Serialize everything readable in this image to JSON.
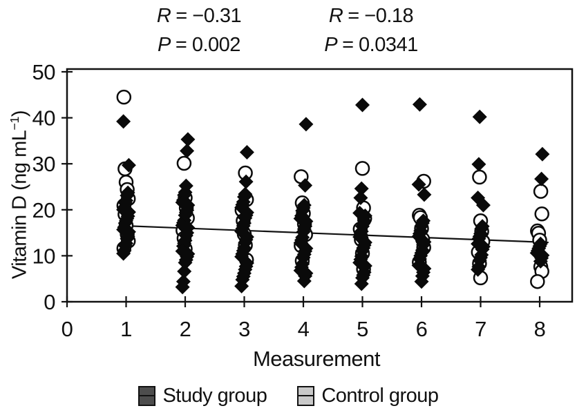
{
  "figure": {
    "stats": [
      {
        "r_symbol": "R",
        "r_value": "= −0.31",
        "p_symbol": "P",
        "p_value": "= 0.002"
      },
      {
        "r_symbol": "R",
        "r_value": "= −0.18",
        "p_symbol": "P",
        "p_value": "= 0.0341"
      }
    ],
    "y_axis": {
      "label_main": "Vitamin D (ng mL",
      "label_sup": "−1",
      "label_close": ")"
    },
    "x_axis": {
      "label": "Measurement"
    },
    "legend": [
      {
        "label": "Study group",
        "swatch_color": "#4d4d4d",
        "marker": "diamond"
      },
      {
        "label": "Control group",
        "swatch_color": "#c9c9c9",
        "marker": "circle"
      }
    ],
    "colors": {
      "ink": "#111111",
      "study_fill": "#0a0a0a",
      "control_fill": "#ffffff"
    }
  },
  "chart_data": {
    "type": "scatter",
    "title": "",
    "xlabel": "Measurement",
    "ylabel": "Vitamin D (ng mL⁻¹)",
    "xlim": [
      0,
      8.55
    ],
    "ylim": [
      0,
      50.5
    ],
    "x_ticks": [
      0,
      1,
      2,
      3,
      4,
      5,
      6,
      7,
      8
    ],
    "y_ticks": [
      0,
      10,
      20,
      30,
      40,
      50
    ],
    "grid": false,
    "legend_position": "bottom",
    "annotations": [
      {
        "line1": "R = −0.31",
        "line2": "P = 0.002"
      },
      {
        "line1": "R = −0.18",
        "line2": "P = 0.0341"
      }
    ],
    "trend_line": {
      "x": [
        1,
        8.15
      ],
      "y": [
        16.5,
        12.9
      ]
    },
    "series": [
      {
        "name": "Control group",
        "marker": "circle",
        "fill": "#ffffff",
        "stroke": "#0a0a0a",
        "points": [
          [
            1,
            44.5
          ],
          [
            1,
            28.9
          ],
          [
            1,
            26.0
          ],
          [
            1,
            24.4
          ],
          [
            1,
            22.4
          ],
          [
            1,
            20.9
          ],
          [
            1,
            19.0
          ],
          [
            1,
            16.6
          ],
          [
            1,
            14.7
          ],
          [
            1,
            13.2
          ],
          [
            1,
            11.6
          ],
          [
            2,
            30.1
          ],
          [
            2,
            22.6
          ],
          [
            2,
            20.4
          ],
          [
            2,
            18.2
          ],
          [
            2,
            15.5
          ],
          [
            2,
            13.8
          ],
          [
            2,
            11.5
          ],
          [
            3,
            28.0
          ],
          [
            3,
            22.2
          ],
          [
            3,
            19.9
          ],
          [
            3,
            17.6
          ],
          [
            3,
            14.7
          ],
          [
            3,
            12.3
          ],
          [
            3,
            9.1
          ],
          [
            4,
            27.2
          ],
          [
            4,
            21.5
          ],
          [
            4,
            19.2
          ],
          [
            4,
            16.9
          ],
          [
            4,
            14.6
          ],
          [
            4,
            12.2
          ],
          [
            4,
            8.9
          ],
          [
            5,
            29.0
          ],
          [
            5,
            20.4
          ],
          [
            5,
            18.1
          ],
          [
            5,
            15.8
          ],
          [
            5,
            13.5
          ],
          [
            5,
            10.5
          ],
          [
            5,
            7.1
          ],
          [
            6,
            26.2
          ],
          [
            6,
            18.8
          ],
          [
            6,
            18.3
          ],
          [
            6,
            15.9
          ],
          [
            6,
            13.6
          ],
          [
            6,
            11.8
          ],
          [
            6,
            8.6
          ],
          [
            7,
            27.1
          ],
          [
            7,
            17.6
          ],
          [
            7,
            15.3
          ],
          [
            7,
            13.1
          ],
          [
            7,
            10.8
          ],
          [
            7,
            8.3
          ],
          [
            7,
            5.2
          ],
          [
            8,
            24.0
          ],
          [
            8,
            19.1
          ],
          [
            8,
            15.4
          ],
          [
            8,
            14.9
          ],
          [
            8,
            13.4
          ],
          [
            8,
            7.6
          ],
          [
            8,
            6.6
          ],
          [
            8,
            4.4
          ]
        ]
      },
      {
        "name": "Study group",
        "marker": "diamond",
        "fill": "#0a0a0a",
        "stroke": "#0a0a0a",
        "points": [
          [
            1,
            39.2
          ],
          [
            1,
            29.7
          ],
          [
            1,
            23.7
          ],
          [
            1,
            23.1
          ],
          [
            1,
            22.0
          ],
          [
            1,
            21.5
          ],
          [
            1,
            20.5
          ],
          [
            1,
            20.0
          ],
          [
            1,
            19.5
          ],
          [
            1,
            18.6
          ],
          [
            1,
            18.1
          ],
          [
            1,
            17.6
          ],
          [
            1,
            17.1
          ],
          [
            1,
            16.2
          ],
          [
            1,
            15.7
          ],
          [
            1,
            15.2
          ],
          [
            1,
            14.2
          ],
          [
            1,
            13.7
          ],
          [
            1,
            12.7
          ],
          [
            1,
            12.2
          ],
          [
            1,
            11.1
          ],
          [
            1,
            10.5
          ],
          [
            2,
            35.3
          ],
          [
            2,
            32.8
          ],
          [
            2,
            25.2
          ],
          [
            2,
            23.8
          ],
          [
            2,
            23.2
          ],
          [
            2,
            22.1
          ],
          [
            2,
            21.6
          ],
          [
            2,
            21.0
          ],
          [
            2,
            19.9
          ],
          [
            2,
            19.4
          ],
          [
            2,
            18.8
          ],
          [
            2,
            17.7
          ],
          [
            2,
            17.2
          ],
          [
            2,
            16.6
          ],
          [
            2,
            16.1
          ],
          [
            2,
            15.0
          ],
          [
            2,
            14.4
          ],
          [
            2,
            13.3
          ],
          [
            2,
            12.7
          ],
          [
            2,
            12.1
          ],
          [
            2,
            11.0
          ],
          [
            2,
            10.4
          ],
          [
            2,
            9.8
          ],
          [
            2,
            9.1
          ],
          [
            2,
            8.5
          ],
          [
            2,
            6.6
          ],
          [
            2,
            4.4
          ],
          [
            2,
            3.2
          ],
          [
            3,
            32.5
          ],
          [
            3,
            26.1
          ],
          [
            3,
            23.4
          ],
          [
            3,
            22.8
          ],
          [
            3,
            21.7
          ],
          [
            3,
            21.1
          ],
          [
            3,
            20.5
          ],
          [
            3,
            19.4
          ],
          [
            3,
            18.8
          ],
          [
            3,
            18.2
          ],
          [
            3,
            17.1
          ],
          [
            3,
            16.5
          ],
          [
            3,
            15.9
          ],
          [
            3,
            15.3
          ],
          [
            3,
            14.1
          ],
          [
            3,
            13.5
          ],
          [
            3,
            12.9
          ],
          [
            3,
            11.7
          ],
          [
            3,
            11.1
          ],
          [
            3,
            10.4
          ],
          [
            3,
            9.8
          ],
          [
            3,
            8.4
          ],
          [
            3,
            7.7
          ],
          [
            3,
            7.0
          ],
          [
            3,
            6.2
          ],
          [
            3,
            5.5
          ],
          [
            3,
            4.8
          ],
          [
            3,
            3.4
          ],
          [
            4,
            38.6
          ],
          [
            4,
            25.3
          ],
          [
            4,
            21.0
          ],
          [
            4,
            20.4
          ],
          [
            4,
            19.8
          ],
          [
            4,
            18.7
          ],
          [
            4,
            18.1
          ],
          [
            4,
            17.5
          ],
          [
            4,
            16.4
          ],
          [
            4,
            15.8
          ],
          [
            4,
            15.2
          ],
          [
            4,
            14.0
          ],
          [
            4,
            13.4
          ],
          [
            4,
            12.8
          ],
          [
            4,
            11.6
          ],
          [
            4,
            11.0
          ],
          [
            4,
            10.3
          ],
          [
            4,
            9.6
          ],
          [
            4,
            8.2
          ],
          [
            4,
            7.5
          ],
          [
            4,
            6.8
          ],
          [
            4,
            6.2
          ],
          [
            4,
            5.6
          ],
          [
            4,
            4.5
          ],
          [
            5,
            42.8
          ],
          [
            5,
            24.6
          ],
          [
            5,
            22.6
          ],
          [
            5,
            19.3
          ],
          [
            5,
            18.7
          ],
          [
            5,
            17.6
          ],
          [
            5,
            17.0
          ],
          [
            5,
            16.4
          ],
          [
            5,
            15.3
          ],
          [
            5,
            14.7
          ],
          [
            5,
            14.1
          ],
          [
            5,
            12.9
          ],
          [
            5,
            12.3
          ],
          [
            5,
            11.7
          ],
          [
            5,
            11.1
          ],
          [
            5,
            9.9
          ],
          [
            5,
            9.2
          ],
          [
            5,
            8.5
          ],
          [
            5,
            7.8
          ],
          [
            5,
            6.4
          ],
          [
            5,
            5.8
          ],
          [
            5,
            5.2
          ],
          [
            5,
            3.9
          ],
          [
            6,
            42.9
          ],
          [
            6,
            25.5
          ],
          [
            6,
            23.3
          ],
          [
            6,
            17.6
          ],
          [
            6,
            17.1
          ],
          [
            6,
            16.5
          ],
          [
            6,
            15.4
          ],
          [
            6,
            14.8
          ],
          [
            6,
            14.2
          ],
          [
            6,
            13.0
          ],
          [
            6,
            12.4
          ],
          [
            6,
            11.2
          ],
          [
            6,
            10.6
          ],
          [
            6,
            10.0
          ],
          [
            6,
            9.3
          ],
          [
            6,
            7.9
          ],
          [
            6,
            7.2
          ],
          [
            6,
            6.4
          ],
          [
            6,
            5.6
          ],
          [
            6,
            4.4
          ],
          [
            7,
            40.2
          ],
          [
            7,
            29.9
          ],
          [
            7,
            22.6
          ],
          [
            7,
            21.0
          ],
          [
            7,
            16.4
          ],
          [
            7,
            15.9
          ],
          [
            7,
            14.8
          ],
          [
            7,
            14.2
          ],
          [
            7,
            13.7
          ],
          [
            7,
            12.6
          ],
          [
            7,
            12.0
          ],
          [
            7,
            11.4
          ],
          [
            7,
            10.2
          ],
          [
            7,
            9.6
          ],
          [
            7,
            9.0
          ],
          [
            7,
            7.6
          ],
          [
            7,
            7.0
          ],
          [
            8,
            32.1
          ],
          [
            8,
            26.7
          ],
          [
            8,
            12.6
          ],
          [
            8,
            12.1
          ],
          [
            8,
            11.6
          ],
          [
            8,
            11.1
          ],
          [
            8,
            10.6
          ],
          [
            8,
            10.1
          ],
          [
            8,
            9.5
          ],
          [
            8,
            8.8
          ]
        ]
      }
    ]
  }
}
